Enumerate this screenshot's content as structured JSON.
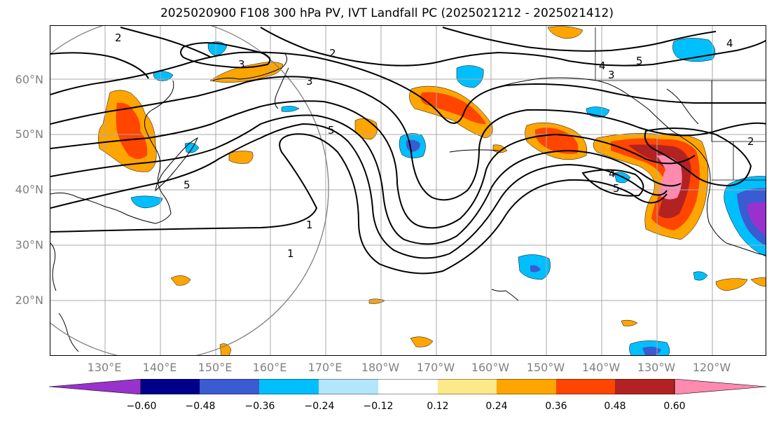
{
  "title": "2025020900 F108 300 hPa PV, IVT Landfall PC (2025021212 - 2025021412)",
  "map": {
    "lat_labels": [
      "60°N",
      "50°N",
      "40°N",
      "30°N",
      "20°N"
    ],
    "lon_labels": [
      "130°E",
      "140°E",
      "150°E",
      "160°E",
      "170°E",
      "180°W",
      "170°W",
      "160°W",
      "150°W",
      "140°W",
      "130°W",
      "120°W"
    ],
    "contour_labels": [
      "2",
      "2",
      "3",
      "3",
      "5",
      "5",
      "4",
      "3",
      "4",
      "5",
      "1",
      "1",
      "5",
      "2",
      "4"
    ],
    "contour_field": "300 hPa PV",
    "shaded_field": "IVT Landfall PC"
  },
  "colorbar": {
    "ticks": [
      "−0.60",
      "−0.48",
      "−0.36",
      "−0.24",
      "−0.12",
      "0.12",
      "0.24",
      "0.36",
      "0.48",
      "0.60"
    ],
    "colors": [
      "#9932cc",
      "#00008b",
      "#3a5bd1",
      "#00bfff",
      "#b3e5fc",
      "#ffffff",
      "#fde98a",
      "#ffa500",
      "#ff4500",
      "#b22222",
      "#ff8ab0"
    ]
  }
}
